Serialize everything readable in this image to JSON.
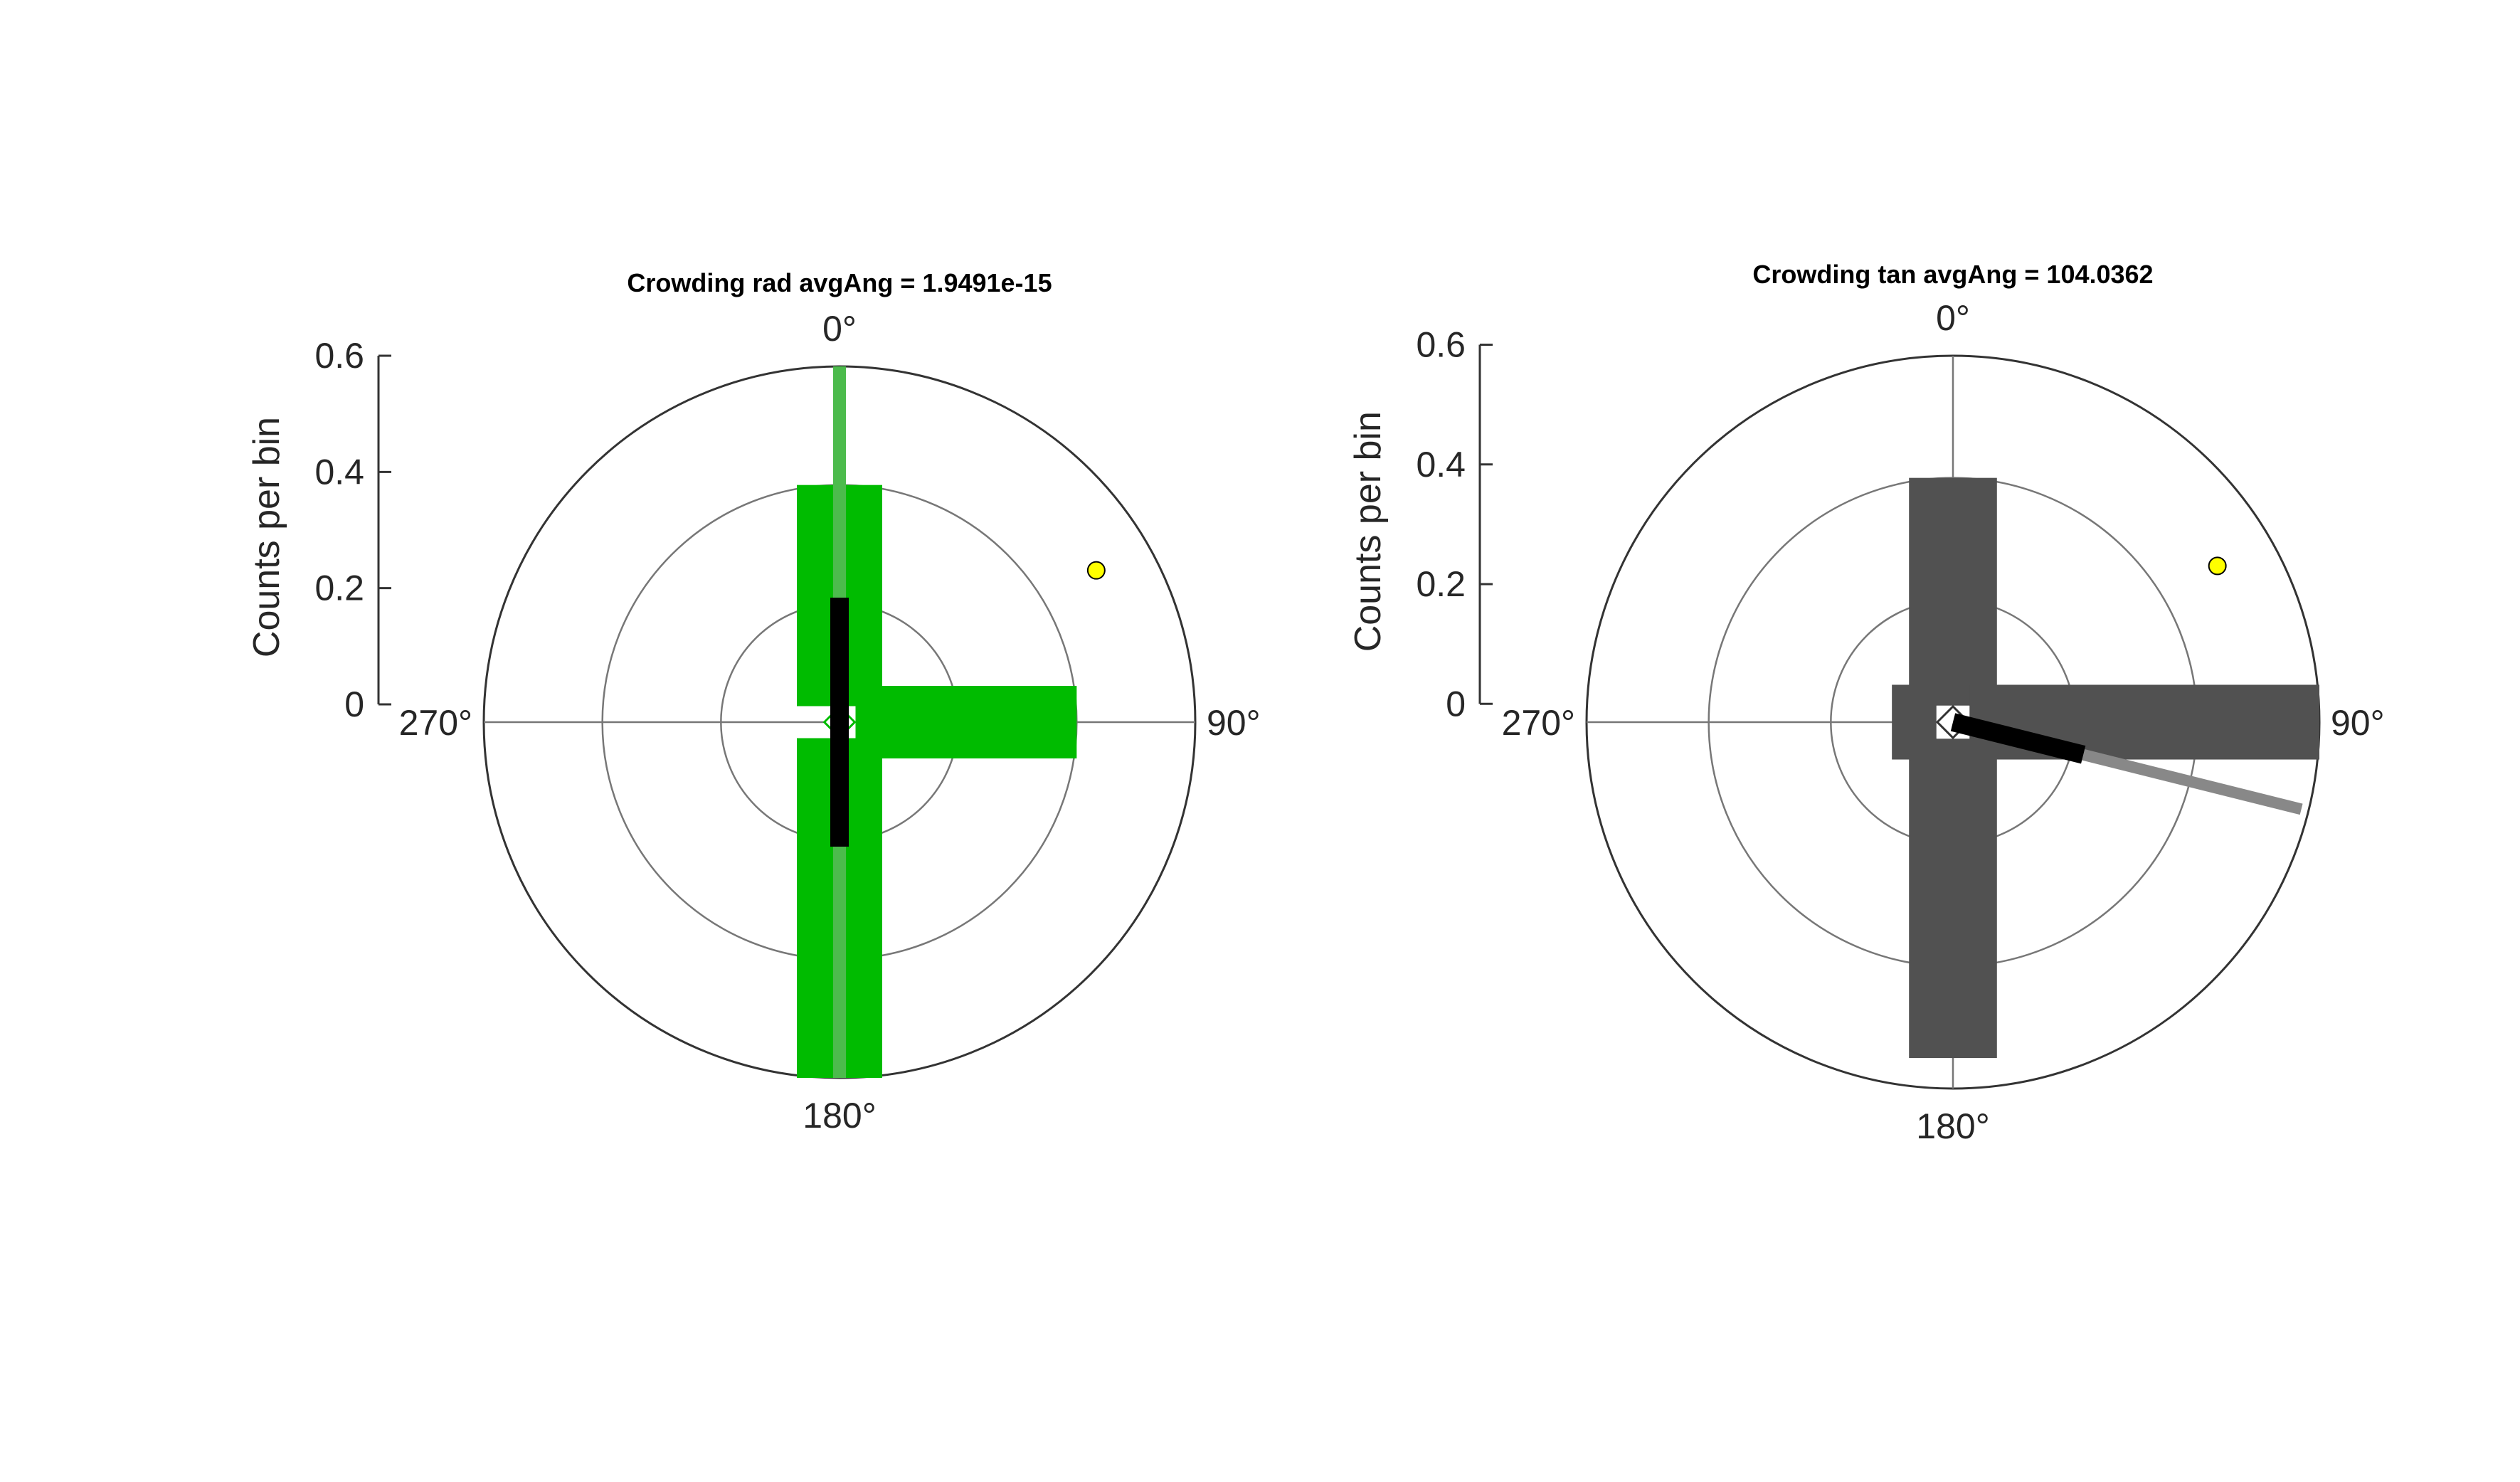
{
  "figure": {
    "background": "#ffffff"
  },
  "chart_data": [
    {
      "type": "polar-histogram",
      "title": "Crowding rad avgAng = 1.9491e-15",
      "ylabel": "Counts per bin",
      "rlim": [
        0,
        0.6
      ],
      "r_ticks": [
        0,
        0.2,
        0.4,
        0.6
      ],
      "r_tick_labels": [
        "0",
        "0.2",
        "0.4",
        "0.6"
      ],
      "theta_zero": "top",
      "theta_direction": "clockwise",
      "theta_ticks": [
        0,
        90,
        180,
        270
      ],
      "theta_tick_labels": [
        "0°",
        "90°",
        "180°",
        "270°"
      ],
      "grid": true,
      "bin_width_deg": 90,
      "bins": [
        {
          "angle_deg": 0,
          "value": 0.4
        },
        {
          "angle_deg": 90,
          "value": 0.4
        },
        {
          "angle_deg": 180,
          "value": 0.6
        },
        {
          "angle_deg": 270,
          "value": 0.0
        }
      ],
      "bar_color": "#00bb00",
      "inner_marker": {
        "shape": "diamond",
        "color": "#00bb00"
      },
      "mean_vector": {
        "angle_deg": 0,
        "length": 0.35,
        "color": "#000000",
        "symmetric": true
      },
      "axis_line": {
        "angle_deg": 0,
        "color": "#4cbb4c",
        "symmetric": true
      },
      "marker": {
        "angle_deg": 60,
        "radius": 0.5,
        "color": "#ffff00"
      }
    },
    {
      "type": "polar-histogram",
      "title": "Crowding tan avgAng = 104.0362",
      "ylabel": "Counts per bin",
      "rlim": [
        0,
        0.6
      ],
      "r_ticks": [
        0,
        0.2,
        0.4,
        0.6
      ],
      "r_tick_labels": [
        "0",
        "0.2",
        "0.4",
        "0.6"
      ],
      "theta_zero": "top",
      "theta_direction": "clockwise",
      "theta_ticks": [
        0,
        90,
        180,
        270
      ],
      "theta_tick_labels": [
        "0°",
        "90°",
        "180°",
        "270°"
      ],
      "grid": true,
      "bin_width_deg": 90,
      "bins": [
        {
          "angle_deg": 0,
          "value": 0.4
        },
        {
          "angle_deg": 90,
          "value": 0.6
        },
        {
          "angle_deg": 180,
          "value": 0.55
        },
        {
          "angle_deg": 270,
          "value": 0.0
        }
      ],
      "bar_color": "#515151",
      "inner_marker": {
        "shape": "diamond",
        "color": "#ffffff"
      },
      "mean_vector": {
        "angle_deg": 104.0362,
        "length": 0.22,
        "color": "#000000",
        "symmetric": false
      },
      "axis_line": {
        "angle_deg": 104.0362,
        "color": "#888888",
        "symmetric": false
      },
      "marker": {
        "angle_deg": 60,
        "radius": 0.5,
        "color": "#ffff00"
      }
    }
  ]
}
